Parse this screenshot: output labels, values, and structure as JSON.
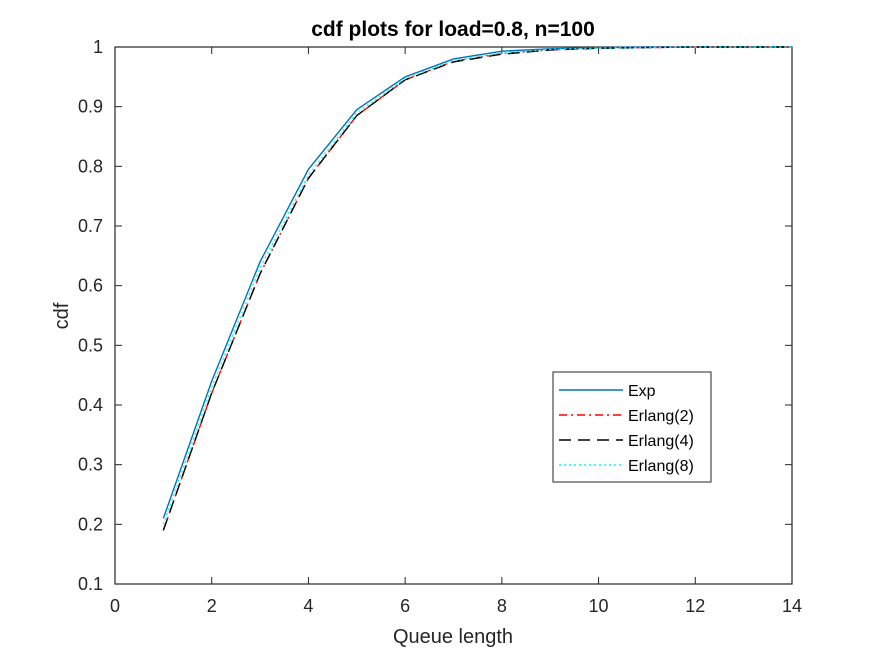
{
  "chart_data": {
    "type": "line",
    "title": "cdf plots for load=0.8, n=100",
    "xlabel": "Queue length",
    "ylabel": "cdf",
    "xlim": [
      0,
      14
    ],
    "ylim": [
      0.1,
      1
    ],
    "xticks": [
      "0",
      "2",
      "4",
      "6",
      "8",
      "10",
      "12",
      "14"
    ],
    "yticks": [
      "0.1",
      "0.2",
      "0.3",
      "0.4",
      "0.5",
      "0.6",
      "0.7",
      "0.8",
      "0.9",
      "1"
    ],
    "grid": false,
    "legend_position": "inside-lower-right",
    "x": [
      1,
      2,
      3,
      4,
      5,
      6,
      7,
      8,
      9,
      10,
      11,
      12,
      13,
      14
    ],
    "series": [
      {
        "name": "Exp",
        "color": "#0072BD",
        "style": "solid",
        "values": [
          0.21,
          0.44,
          0.64,
          0.795,
          0.895,
          0.95,
          0.98,
          0.993,
          0.997,
          0.999,
          1.0,
          1.0,
          1.0,
          1.0
        ]
      },
      {
        "name": "Erlang(2)",
        "color": "#FF0000",
        "style": "dashdot",
        "values": [
          0.19,
          0.42,
          0.62,
          0.78,
          0.885,
          0.945,
          0.976,
          0.989,
          0.995,
          0.998,
          0.999,
          1.0,
          1.0,
          1.0
        ]
      },
      {
        "name": "Erlang(4)",
        "color": "#000000",
        "style": "dashed",
        "values": [
          0.19,
          0.42,
          0.62,
          0.78,
          0.885,
          0.945,
          0.975,
          0.988,
          0.995,
          0.998,
          0.999,
          1.0,
          1.0,
          1.0
        ]
      },
      {
        "name": "Erlang(8)",
        "color": "#00FFFF",
        "style": "dotted",
        "values": [
          0.2,
          0.43,
          0.63,
          0.785,
          0.89,
          0.947,
          0.977,
          0.99,
          0.996,
          0.998,
          0.999,
          1.0,
          1.0,
          1.0
        ]
      }
    ]
  }
}
